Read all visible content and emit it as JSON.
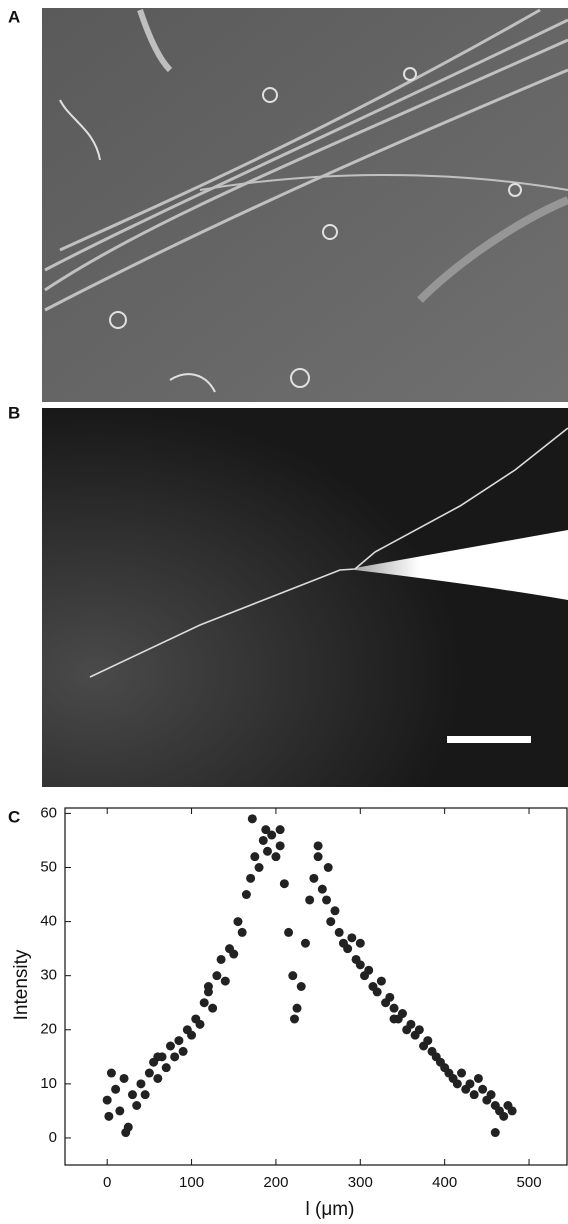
{
  "panel_labels": [
    "A",
    "B",
    "C"
  ],
  "chart_data": {
    "type": "scatter",
    "x_label": "l (μm)",
    "y_label": "Intensity",
    "xlim": [
      -50,
      545
    ],
    "ylim": [
      -5,
      61
    ],
    "xticks": [
      0,
      100,
      200,
      300,
      400,
      500
    ],
    "yticks": [
      0,
      10,
      20,
      30,
      40,
      50,
      60
    ],
    "color": "#222222",
    "x": [
      0,
      5,
      10,
      15,
      20,
      25,
      30,
      35,
      40,
      45,
      50,
      55,
      60,
      65,
      70,
      75,
      80,
      85,
      90,
      95,
      100,
      105,
      110,
      115,
      120,
      125,
      130,
      135,
      140,
      145,
      150,
      155,
      160,
      165,
      170,
      175,
      180,
      185,
      190,
      195,
      200,
      205,
      210,
      215,
      220,
      225,
      230,
      235,
      240,
      245,
      250,
      255,
      260,
      265,
      270,
      275,
      280,
      285,
      290,
      295,
      300,
      305,
      310,
      315,
      320,
      325,
      330,
      335,
      340,
      345,
      350,
      355,
      360,
      365,
      370,
      375,
      380,
      385,
      390,
      395,
      400,
      405,
      410,
      415,
      420,
      425,
      430,
      435,
      440,
      445,
      450,
      455,
      460,
      465,
      470,
      475,
      480,
      172,
      250,
      222,
      2,
      460,
      22,
      188,
      205,
      262,
      300,
      340,
      120,
      60
    ],
    "values": [
      7,
      12,
      9,
      5,
      11,
      2,
      8,
      6,
      10,
      8,
      12,
      14,
      11,
      15,
      13,
      17,
      15,
      18,
      16,
      20,
      19,
      22,
      21,
      25,
      28,
      24,
      30,
      33,
      29,
      35,
      34,
      40,
      38,
      45,
      48,
      52,
      50,
      55,
      53,
      56,
      52,
      54,
      47,
      38,
      30,
      24,
      28,
      36,
      44,
      48,
      52,
      46,
      44,
      40,
      42,
      38,
      36,
      35,
      37,
      33,
      32,
      30,
      31,
      28,
      27,
      29,
      25,
      26,
      24,
      22,
      23,
      20,
      21,
      19,
      20,
      17,
      18,
      16,
      15,
      14,
      13,
      12,
      11,
      10,
      12,
      9,
      10,
      8,
      11,
      9,
      7,
      8,
      6,
      5,
      4,
      6,
      5,
      59,
      54,
      22,
      4,
      1,
      1,
      57,
      57,
      50,
      36,
      22,
      27,
      15
    ]
  }
}
